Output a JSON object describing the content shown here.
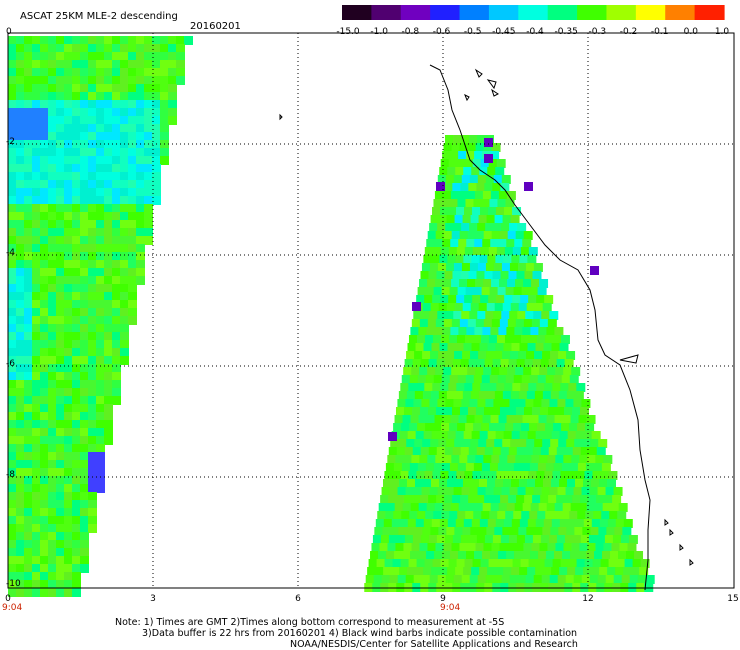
{
  "title": "ASCAT 25KM MLE-2 descending",
  "date": "20160201",
  "colorbar": {
    "labels": [
      "-15.0",
      "-1.0",
      "-0.8",
      "-0.6",
      "-0.5",
      "-0.45",
      "-0.4",
      "-0.35",
      "-0.3",
      "-0.2",
      "-0.1",
      "0.0",
      "1.0"
    ],
    "colors": [
      "#200020",
      "#500070",
      "#7000c0",
      "#2020ff",
      "#0080ff",
      "#00c8ff",
      "#00ffe0",
      "#00ff80",
      "#40ff00",
      "#a0ff00",
      "#ffff00",
      "#ff8000",
      "#ff2000"
    ]
  },
  "axes": {
    "x_ticks": [
      "0",
      "3",
      "6",
      "9",
      "12",
      "15"
    ],
    "y_ticks": [
      "0",
      "-2",
      "-4",
      "-6",
      "-8",
      "-10"
    ],
    "time_left": "9:04",
    "time_mid": "9:04"
  },
  "notes": {
    "line1": "Note: 1) Times are GMT 2)Times along bottom correspond to measurement at -5S",
    "line2": "3)Data buffer is 22 hrs from 20160201 4) Black wind barbs indicate possible contamination",
    "line3": "NOAA/NESDIS/Center for Satellite Applications and Research"
  }
}
